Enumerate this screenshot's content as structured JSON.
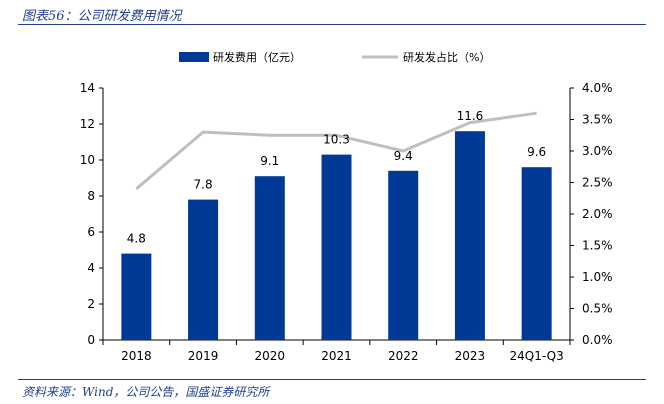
{
  "figure": {
    "title": "图表56：公司研发费用情况",
    "source": "资料来源：Wind，公司公告，国盛证券研究所"
  },
  "chart_data": {
    "type": "bar",
    "categories": [
      "2018",
      "2019",
      "2020",
      "2021",
      "2022",
      "2023",
      "24Q1-Q3"
    ],
    "series": [
      {
        "name": "研发费用（亿元）",
        "type": "bar",
        "axis": "left",
        "color": "#003a96",
        "values": [
          4.8,
          7.8,
          9.1,
          10.3,
          9.4,
          11.6,
          9.6
        ],
        "labels": [
          "4.8",
          "7.8",
          "9.1",
          "10.3",
          "9.4",
          "11.6",
          "9.6"
        ]
      },
      {
        "name": "研发发占比（%）",
        "type": "line",
        "axis": "right",
        "color": "#bfbfbf",
        "values": [
          2.4,
          3.3,
          3.25,
          3.25,
          3.0,
          3.45,
          3.6
        ]
      }
    ],
    "y_left": {
      "min": 0,
      "max": 14,
      "ticks": [
        "0",
        "2",
        "4",
        "6",
        "8",
        "10",
        "12",
        "14"
      ]
    },
    "y_right": {
      "min": 0,
      "max": 4,
      "ticks": [
        "0.0%",
        "0.5%",
        "1.0%",
        "1.5%",
        "2.0%",
        "2.5%",
        "3.0%",
        "3.5%",
        "4.0%"
      ]
    },
    "grid": false,
    "legend_position": "top"
  }
}
